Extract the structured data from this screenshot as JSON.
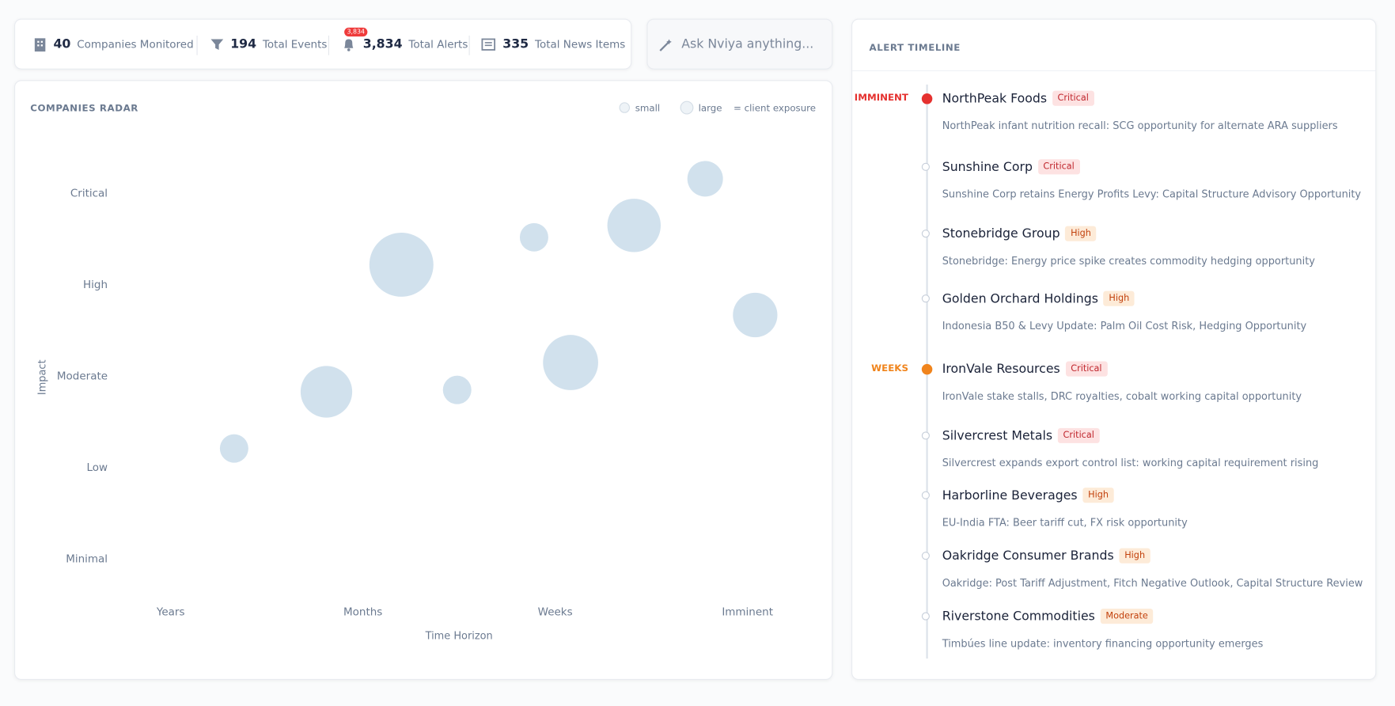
{
  "stats": [
    {
      "value": "40",
      "label": "Companies Monitored"
    },
    {
      "value": "194",
      "label": "Total Events"
    },
    {
      "value": "3,834",
      "label": "Total Alerts",
      "badge": "3,834"
    },
    {
      "value": "335",
      "label": "Total News Items"
    }
  ],
  "search": {
    "placeholder": "Ask Nviya anything..."
  },
  "chart_data": {
    "type": "bubble",
    "title": "COMPANIES RADAR",
    "x_label": "Time Horizon",
    "y_label": "Impact",
    "legend": [
      "small",
      "large",
      "= client exposure"
    ],
    "color": "#c9dcea",
    "x": [
      0.33,
      0.81,
      1.2,
      1.49,
      1.89,
      2.08,
      2.41,
      2.78,
      3.04
    ],
    "values": [
      1.21,
      1.83,
      3.22,
      1.85,
      3.52,
      2.15,
      3.65,
      4.16,
      2.67
    ],
    "sizes": [
      16,
      29,
      36,
      16,
      16,
      31,
      30,
      20,
      25
    ],
    "xlim": [
      -0.3,
      3.3
    ],
    "ylim": [
      -0.3,
      4.5
    ],
    "xticks": [
      {
        "value": 0,
        "label": "Years"
      },
      {
        "value": 1,
        "label": "Months"
      },
      {
        "value": 2,
        "label": "Weeks"
      },
      {
        "value": 3,
        "label": "Imminent"
      }
    ],
    "yticks": [
      {
        "value": 0,
        "label": "Minimal"
      },
      {
        "value": 1,
        "label": "Low"
      },
      {
        "value": 2,
        "label": "Moderate"
      },
      {
        "value": 3,
        "label": "High"
      },
      {
        "value": 4,
        "label": "Critical"
      }
    ]
  },
  "timeline": {
    "title": "ALERT TIMELINE",
    "groups": [
      {
        "label": "IMMINENT",
        "items": [
          {
            "company": "NorthPeak Foods",
            "severity": "Critical",
            "text": "NorthPeak infant nutrition recall: SCG opportunity for alternate ARA suppliers"
          },
          {
            "company": "Sunshine Corp",
            "severity": "Critical",
            "text": "Sunshine Corp retains Energy Profits Levy: Capital Structure Advisory Opportunity"
          },
          {
            "company": "Stonebridge Group",
            "severity": "High",
            "text": "Stonebridge: Energy price spike creates commodity hedging opportunity"
          },
          {
            "company": "Golden Orchard Holdings",
            "severity": "High",
            "text": "Indonesia B50 & Levy Update: Palm Oil Cost Risk, Hedging Opportunity"
          }
        ]
      },
      {
        "label": "WEEKS",
        "items": [
          {
            "company": "IronVale Resources",
            "severity": "Critical",
            "text": "IronVale stake stalls, DRC royalties, cobalt working capital opportunity"
          },
          {
            "company": "Silvercrest Metals",
            "severity": "Critical",
            "text": "Silvercrest expands export control list: working capital requirement rising"
          },
          {
            "company": "Harborline Beverages",
            "severity": "High",
            "text": "EU-India FTA: Beer tariff cut, FX risk opportunity"
          },
          {
            "company": "Oakridge Consumer Brands",
            "severity": "High",
            "text": "Oakridge: Post Tariff Adjustment, Fitch Negative Outlook, Capital Structure Review"
          },
          {
            "company": "Riverstone Commodities",
            "severity": "Moderate",
            "text": "Timbúes line update: inventory financing opportunity emerges"
          }
        ]
      }
    ]
  }
}
